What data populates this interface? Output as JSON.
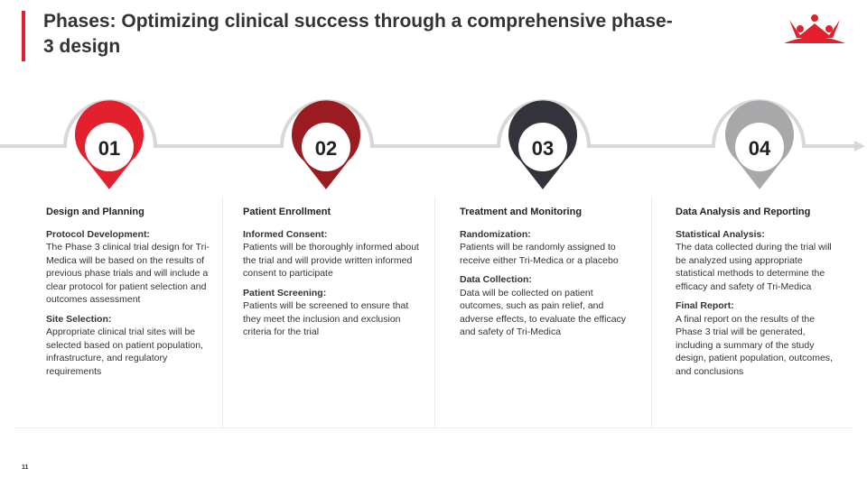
{
  "slide": {
    "title": "Phases: Optimizing clinical success through a comprehensive phase-3 design",
    "page_number": "11",
    "colors": {
      "accent": "#e2202e",
      "phase1": "#e2202e",
      "phase2": "#9b1c20",
      "phase3": "#33343b",
      "phase4": "#a8a8ab"
    }
  },
  "phases": [
    {
      "number": "01",
      "heading": "Design and Planning",
      "sections": [
        {
          "title": "Protocol Development:",
          "text": "The Phase 3 clinical trial design for Tri-Medica will be based on the results of previous phase trials and will include a clear protocol for patient selection and outcomes assessment"
        },
        {
          "title": "Site Selection:",
          "text": "Appropriate clinical trial sites will be selected based on patient population, infrastructure, and regulatory requirements"
        }
      ]
    },
    {
      "number": "02",
      "heading": "Patient Enrollment",
      "sections": [
        {
          "title": "Informed Consent:",
          "text": "Patients will be thoroughly informed about the trial and will provide written informed consent to participate"
        },
        {
          "title": "Patient Screening:",
          "text": "Patients will be screened to ensure that they meet the inclusion and exclusion criteria for the trial"
        }
      ]
    },
    {
      "number": "03",
      "heading": "Treatment and Monitoring",
      "sections": [
        {
          "title": "Randomization:",
          "text": "Patients will be randomly assigned to receive either Tri-Medica or a placebo"
        },
        {
          "title": "Data Collection:",
          "text": "Data will be collected on patient outcomes, such as pain relief, and adverse effects, to evaluate the efficacy and safety of Tri-Medica"
        }
      ]
    },
    {
      "number": "04",
      "heading": "Data Analysis and Reporting",
      "sections": [
        {
          "title": "Statistical Analysis:",
          "text": "The data collected during the trial will be analyzed using appropriate statistical methods to determine the efficacy and safety of Tri-Medica"
        },
        {
          "title": "Final Report:",
          "text": "A final report on the results of the Phase 3 trial will be generated, including a summary of the study design, patient population, outcomes, and conclusions"
        }
      ]
    }
  ]
}
